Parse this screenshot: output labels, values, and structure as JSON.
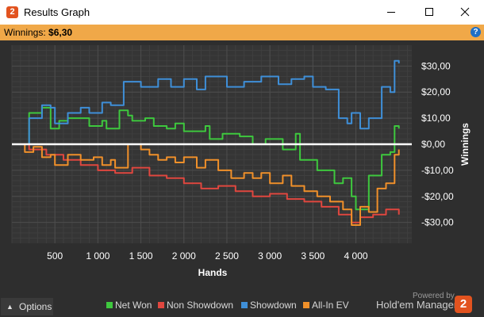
{
  "window": {
    "title": "Results Graph",
    "app_icon": "holdem-manager-2-icon",
    "app_icon_glyph": "2"
  },
  "info_bar": {
    "winnings_label": "Winnings:",
    "winnings_value": "$6,30",
    "help_glyph": "?"
  },
  "options": {
    "label": "Options"
  },
  "legend": [
    {
      "label": "Net Won",
      "color": "#3ec83e"
    },
    {
      "label": "Non Showdown",
      "color": "#e0473f"
    },
    {
      "label": "Showdown",
      "color": "#3f8fd8"
    },
    {
      "label": "All-In EV",
      "color": "#f0902a"
    }
  ],
  "branding": {
    "powered_by": "Powered by",
    "name": "Hold'em Manager",
    "logo_glyph": "2"
  },
  "chart_data": {
    "type": "line",
    "xlabel": "Hands",
    "ylabel": "Winnings",
    "xlim": [
      0,
      4650
    ],
    "ylim": [
      -38,
      38
    ],
    "x_ticks": [
      500,
      1000,
      1500,
      2000,
      2500,
      3000,
      3500,
      4000
    ],
    "x_tick_labels": [
      "500",
      "1 000",
      "1 500",
      "2 000",
      "2 500",
      "3 000",
      "3 500",
      "4 000"
    ],
    "y_ticks": [
      30,
      20,
      10,
      0,
      -10,
      -20,
      -30
    ],
    "y_tick_labels": [
      "$30,00",
      "$20,00",
      "$10,00",
      "$0,00",
      "-$10,00",
      "-$20,00",
      "-$30,00"
    ],
    "grid": true,
    "zero_line_color": "#ffffff",
    "series": [
      {
        "name": "Net Won",
        "color": "#3ec83e",
        "x": [
          0,
          150,
          200,
          350,
          450,
          550,
          650,
          900,
          1050,
          1100,
          1250,
          1350,
          1400,
          1550,
          1650,
          1800,
          1900,
          2000,
          2250,
          2300,
          2450,
          2650,
          2800,
          2950,
          3150,
          3300,
          3350,
          3550,
          3750,
          3850,
          3950,
          4000,
          4150,
          4300,
          4400,
          4450,
          4500
        ],
        "y": [
          0,
          0,
          12,
          14,
          6,
          9,
          10,
          7,
          9,
          6,
          13,
          11,
          9,
          10,
          7,
          6,
          8,
          5,
          7,
          2,
          4,
          3,
          0,
          2,
          -2,
          4,
          -6,
          -10,
          -15,
          -13,
          -20,
          -25,
          -12,
          -4,
          -3,
          7,
          6
        ]
      },
      {
        "name": "Non Showdown",
        "color": "#e0473f",
        "x": [
          0,
          200,
          400,
          600,
          800,
          1000,
          1200,
          1400,
          1600,
          1800,
          2000,
          2200,
          2400,
          2600,
          2800,
          3000,
          3200,
          3400,
          3600,
          3800,
          3950,
          4050,
          4200,
          4350,
          4500
        ],
        "y": [
          0,
          -2,
          -4,
          -6,
          -8,
          -10,
          -11,
          -9,
          -12,
          -13,
          -15,
          -17,
          -16,
          -18,
          -20,
          -19,
          -21,
          -22,
          -24,
          -27,
          -30,
          -28,
          -27,
          -25,
          -27
        ]
      },
      {
        "name": "Showdown",
        "color": "#3f8fd8",
        "x": [
          0,
          150,
          200,
          350,
          450,
          500,
          650,
          800,
          900,
          1050,
          1150,
          1300,
          1500,
          1700,
          1850,
          2000,
          2150,
          2250,
          2500,
          2700,
          2900,
          3100,
          3250,
          3400,
          3500,
          3650,
          3800,
          3900,
          3950,
          4050,
          4150,
          4300,
          4400,
          4450,
          4500
        ],
        "y": [
          0,
          0,
          10,
          15,
          14,
          8,
          12,
          14,
          12,
          16,
          15,
          24,
          22,
          25,
          22,
          25,
          21,
          26,
          22,
          24,
          26,
          23,
          25,
          26,
          22,
          21,
          10,
          8,
          12,
          6,
          10,
          22,
          20,
          32,
          31
        ]
      },
      {
        "name": "All-In EV",
        "color": "#f0902a",
        "x": [
          0,
          150,
          250,
          350,
          450,
          500,
          650,
          800,
          950,
          1050,
          1150,
          1200,
          1350,
          1500,
          1600,
          1700,
          1800,
          1900,
          2000,
          2150,
          2250,
          2400,
          2550,
          2700,
          2800,
          2900,
          3000,
          3150,
          3250,
          3400,
          3550,
          3700,
          3850,
          3950,
          4050,
          4150,
          4250,
          4350,
          4450,
          4500
        ],
        "y": [
          0,
          -3,
          -1,
          -5,
          -4,
          -8,
          -4,
          -6,
          -5,
          -8,
          -6,
          -9,
          0,
          -2,
          -4,
          -6,
          -5,
          -7,
          -5,
          -9,
          -6,
          -10,
          -13,
          -11,
          -13,
          -11,
          -15,
          -12,
          -16,
          -18,
          -20,
          -22,
          -25,
          -31,
          -24,
          -26,
          -17,
          -15,
          -4,
          -2
        ]
      }
    ]
  }
}
